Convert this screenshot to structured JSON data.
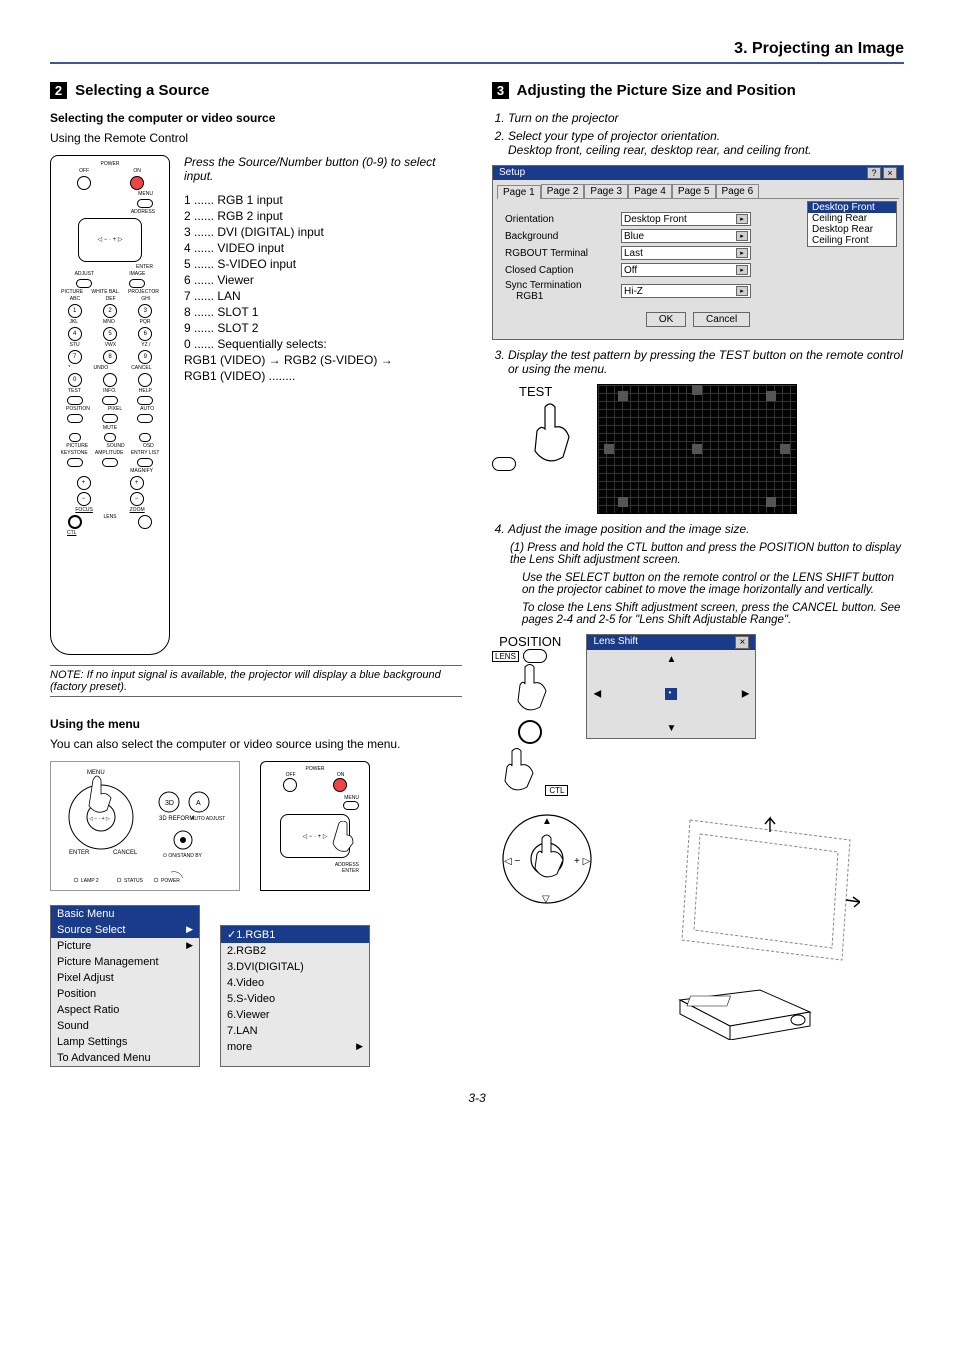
{
  "chapter_title": "3. Projecting an Image",
  "page_number": "3-3",
  "left": {
    "section_number": "2",
    "section_title": "Selecting a Source",
    "sub1_title": "Selecting the computer or video source",
    "sub1_text": "Using the Remote Control",
    "remote_hint": "Press the Source/Number button (0-9) to select input.",
    "remote_items": [
      "1 ...... RGB 1 input",
      "2 ...... RGB 2 input",
      "3 ...... DVI (DIGITAL) input",
      "4 ...... VIDEO input",
      "5 ...... S-VIDEO input",
      "6 ...... Viewer",
      "7 ...... LAN",
      "8 ...... SLOT 1",
      "9 ...... SLOT 2",
      "0 ...... Sequentially selects:",
      "RGB1 (VIDEO) → RGB2 (S-VIDEO) →",
      "RGB1 (VIDEO) ........"
    ],
    "remote_labels": {
      "power": "POWER",
      "off": "OFF",
      "on": "ON",
      "menu": "MENU",
      "address": "ADDRESS",
      "enter": "ENTER",
      "adjust": "ADJUST",
      "image": "IMAGE",
      "picture": "PICTURE",
      "whitebal": "WHITE BAL.",
      "projector": "PROJECTOR",
      "abc": "ABC",
      "def": "DEF",
      "ghi": "GHI",
      "jkl": "JKL",
      "mno": "MNO",
      "pqr": "PQR",
      "stu": "STU",
      "vwx": "VWX",
      "yz": "YZ /",
      "undo": "UNDO",
      "cancel": "CANCEL",
      "test": "TEST",
      "info": "INFO.",
      "help": "HELP",
      "position": "POSITION",
      "pixel": "PIXEL",
      "auto": "AUTO",
      "mute": "MUTE",
      "pic": "PICTURE",
      "sound": "SOUND",
      "osd": "OSD",
      "keystone": "KEYSTONE",
      "amplitude": "AMPLITUDE",
      "entrylist": "ENTRY LIST",
      "magnify": "MAGNIFY",
      "focus": "FOCUS",
      "zoom": "ZOOM",
      "lens": "LENS",
      "ctl": "CTL"
    },
    "note": "NOTE: If no input signal is available, the projector will display a blue background (factory preset).",
    "sub2_title": "Using the menu",
    "sub2_text": "You can also select the computer or video source using the menu.",
    "panel_labels": {
      "menu": "MENU",
      "reform": "3D REFORM",
      "autoadj": "AUTO ADJUST",
      "standby": "ON/STAND BY",
      "enter": "ENTER",
      "cancel": "CANCEL",
      "3d": "3D",
      "a": "A",
      "lamp2": "LAMP 2",
      "status": "STATUS",
      "power_lbl": "POWER"
    },
    "mini_remote_labels": {
      "power": "POWER",
      "off": "OFF",
      "on": "ON",
      "menu": "MENU",
      "address": "ADDRESS",
      "enter": "ENTER"
    },
    "basic_menu": {
      "title": "Basic Menu",
      "items": [
        {
          "label": "Source Select",
          "arrow": true,
          "selected": true
        },
        {
          "label": "Picture",
          "arrow": true
        },
        {
          "label": "Picture Management"
        },
        {
          "label": "Pixel Adjust"
        },
        {
          "label": "Position"
        },
        {
          "label": "Aspect Ratio"
        },
        {
          "label": "Sound"
        },
        {
          "label": "Lamp Settings"
        },
        {
          "label": "To Advanced Menu"
        }
      ]
    },
    "source_submenu": {
      "items": [
        {
          "label": "✓1.RGB1",
          "selected": true
        },
        {
          "label": "2.RGB2"
        },
        {
          "label": "3.DVI(DIGITAL)"
        },
        {
          "label": "4.Video"
        },
        {
          "label": "5.S-Video"
        },
        {
          "label": "6.Viewer"
        },
        {
          "label": "7.LAN"
        },
        {
          "label": "more",
          "arrow": true
        }
      ]
    }
  },
  "right": {
    "section_number": "3",
    "section_title": "Adjusting the Picture Size and Position",
    "steps12": [
      "Turn on the projector",
      "Select your type of projector orientation."
    ],
    "step2_note": "Desktop front, ceiling rear, desktop rear, and ceiling front.",
    "setup": {
      "title": "Setup",
      "help_label": "?",
      "close_label": "×",
      "tabs": [
        "Page 1",
        "Page 2",
        "Page 3",
        "Page 4",
        "Page 5",
        "Page 6"
      ],
      "active_tab": 0,
      "rows": [
        {
          "label": "Orientation",
          "value": "Desktop Front"
        },
        {
          "label": "Background",
          "value": "Blue"
        },
        {
          "label": "RGBOUT Terminal",
          "value": "Last"
        },
        {
          "label": "Closed Caption",
          "value": "Off"
        },
        {
          "label": "Sync Termination RGB1",
          "value": "Hi-Z",
          "indent": true
        }
      ],
      "orientation_options": [
        "Desktop Front",
        "Ceiling Rear",
        "Desktop Rear",
        "Ceiling Front"
      ],
      "ok_label": "OK",
      "cancel_label": "Cancel"
    },
    "step3": "Display the test pattern by pressing the TEST button on the remote control or using the menu.",
    "test_label": "TEST",
    "step4": "Adjust the image position and the image size.",
    "step4_1": "(1) Press and hold the CTL button and press the POSITION button to display the Lens Shift adjustment screen.",
    "step4_1a": "Use the SELECT button on the remote control or the LENS SHIFT button on the projector cabinet to move the image horizontally and vertically.",
    "step4_1b": "To close the Lens Shift adjustment screen, press the CANCEL button. See pages 2-4 and 2-5 for \"Lens Shift Adjustable Range\".",
    "position_label": "POSITION",
    "lens_label": "LENS",
    "ctl_label": "CTL",
    "lens_shift": {
      "title": "Lens Shift",
      "close_label": "×"
    }
  },
  "colors": {
    "header_rule": "#3b5998",
    "titlebar": "#1a3a8a",
    "window_bg": "#e0e0e0",
    "grid_bg": "#000000",
    "grid_line": "#333333"
  }
}
